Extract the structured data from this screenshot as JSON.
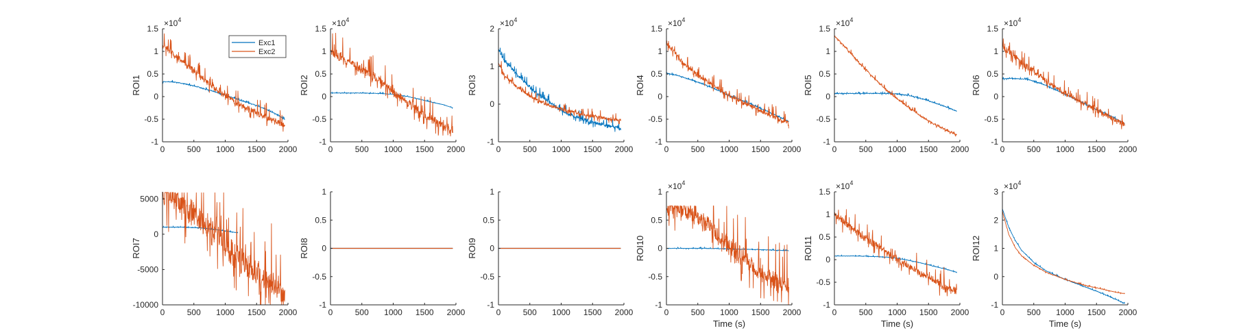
{
  "colors": {
    "Exc1": "#0072BD",
    "Exc2": "#D95319",
    "axis": "#262626"
  },
  "legend": {
    "location": "top-right of ROI1",
    "entries": [
      "Exc1",
      "Exc2"
    ]
  },
  "chart_data": [
    {
      "type": "line",
      "ylabel": "ROI1",
      "xlabel": "",
      "exponent": "4",
      "xlim": [
        0,
        2000
      ],
      "ylim": [
        -1,
        1.5
      ],
      "xticks": [
        "0",
        "500",
        "1000",
        "1500",
        "2000"
      ],
      "yticks": [
        "-1",
        "-0.5",
        "0",
        "0.5",
        "1",
        "1.5"
      ],
      "series": [
        {
          "name": "Exc1",
          "x": [
            0,
            200,
            400,
            600,
            800,
            1000,
            1200,
            1400,
            1600,
            1800,
            1950
          ],
          "y": [
            0.33,
            0.32,
            0.27,
            0.2,
            0.12,
            0.03,
            -0.06,
            -0.15,
            -0.25,
            -0.38,
            -0.5
          ],
          "noise": 0.02
        },
        {
          "name": "Exc2",
          "x": [
            0,
            200,
            400,
            600,
            800,
            1000,
            1200,
            1400,
            1600,
            1800,
            1950
          ],
          "y": [
            1.15,
            0.9,
            0.68,
            0.45,
            0.22,
            0.02,
            -0.15,
            -0.3,
            -0.42,
            -0.55,
            -0.65
          ],
          "noise": 0.15
        }
      ]
    },
    {
      "type": "line",
      "ylabel": "ROI2",
      "xlabel": "",
      "exponent": "4",
      "xlim": [
        0,
        2000
      ],
      "ylim": [
        -1,
        1.5
      ],
      "xticks": [
        "0",
        "500",
        "1000",
        "1500",
        "2000"
      ],
      "yticks": [
        "-1",
        "-0.5",
        "0",
        "0.5",
        "1",
        "1.5"
      ],
      "series": [
        {
          "name": "Exc1",
          "x": [
            0,
            400,
            800,
            1000,
            1200,
            1400,
            1600,
            1800,
            1950
          ],
          "y": [
            0.08,
            0.08,
            0.07,
            0.05,
            0.01,
            -0.05,
            -0.12,
            -0.18,
            -0.25
          ],
          "noise": 0.01
        },
        {
          "name": "Exc2",
          "x": [
            0,
            200,
            400,
            600,
            800,
            1000,
            1200,
            1400,
            1600,
            1800,
            1950
          ],
          "y": [
            1.0,
            0.85,
            0.7,
            0.52,
            0.32,
            0.1,
            -0.1,
            -0.3,
            -0.5,
            -0.65,
            -0.75
          ],
          "noise": 0.22
        }
      ]
    },
    {
      "type": "line",
      "ylabel": "ROI3",
      "xlabel": "",
      "exponent": "4",
      "xlim": [
        0,
        2000
      ],
      "ylim": [
        -1,
        2
      ],
      "xticks": [
        "0",
        "500",
        "1000",
        "1500",
        "2000"
      ],
      "yticks": [
        "-1",
        "0",
        "1",
        "2"
      ],
      "series": [
        {
          "name": "Exc1",
          "x": [
            0,
            100,
            300,
            500,
            700,
            900,
            1100,
            1300,
            1500,
            1700,
            1950
          ],
          "y": [
            1.45,
            1.15,
            0.78,
            0.45,
            0.18,
            -0.05,
            -0.25,
            -0.38,
            -0.48,
            -0.55,
            -0.65
          ],
          "noise": 0.1
        },
        {
          "name": "Exc2",
          "x": [
            0,
            100,
            300,
            500,
            700,
            900,
            1100,
            1300,
            1500,
            1700,
            1950
          ],
          "y": [
            1.1,
            0.75,
            0.45,
            0.22,
            0.05,
            -0.08,
            -0.18,
            -0.26,
            -0.32,
            -0.38,
            -0.42
          ],
          "noise": 0.1
        }
      ]
    },
    {
      "type": "line",
      "ylabel": "ROI4",
      "xlabel": "",
      "exponent": "4",
      "xlim": [
        0,
        2000
      ],
      "ylim": [
        -1,
        1.5
      ],
      "xticks": [
        "0",
        "500",
        "1000",
        "1500",
        "2000"
      ],
      "yticks": [
        "-1",
        "-0.5",
        "0",
        "0.5",
        "1",
        "1.5"
      ],
      "series": [
        {
          "name": "Exc1",
          "x": [
            0,
            200,
            400,
            600,
            800,
            1000,
            1200,
            1400,
            1600,
            1800,
            1950
          ],
          "y": [
            0.52,
            0.46,
            0.37,
            0.27,
            0.15,
            0.03,
            -0.08,
            -0.2,
            -0.32,
            -0.45,
            -0.55
          ],
          "noise": 0.02
        },
        {
          "name": "Exc2",
          "x": [
            0,
            200,
            400,
            600,
            800,
            1000,
            1200,
            1400,
            1600,
            1800,
            1950
          ],
          "y": [
            1.2,
            0.85,
            0.58,
            0.38,
            0.2,
            0.03,
            -0.12,
            -0.25,
            -0.38,
            -0.5,
            -0.6
          ],
          "noise": 0.12
        }
      ]
    },
    {
      "type": "line",
      "ylabel": "ROI5",
      "xlabel": "",
      "exponent": "4",
      "xlim": [
        0,
        2000
      ],
      "ylim": [
        -1,
        1.5
      ],
      "xticks": [
        "0",
        "500",
        "1000",
        "1500",
        "2000"
      ],
      "yticks": [
        "-1",
        "-0.5",
        "0",
        "0.5",
        "1",
        "1.5"
      ],
      "series": [
        {
          "name": "Exc1",
          "x": [
            0,
            400,
            800,
            1000,
            1200,
            1400,
            1600,
            1800,
            1950
          ],
          "y": [
            0.07,
            0.07,
            0.07,
            0.06,
            0.02,
            -0.05,
            -0.14,
            -0.24,
            -0.32
          ],
          "noise": 0.02
        },
        {
          "name": "Exc2",
          "x": [
            0,
            200,
            400,
            600,
            800,
            1000,
            1200,
            1400,
            1600,
            1800,
            1950
          ],
          "y": [
            1.35,
            1.05,
            0.75,
            0.45,
            0.18,
            -0.05,
            -0.25,
            -0.45,
            -0.62,
            -0.75,
            -0.85
          ],
          "noise": 0.04
        }
      ]
    },
    {
      "type": "line",
      "ylabel": "ROI6",
      "xlabel": "",
      "exponent": "4",
      "xlim": [
        0,
        2000
      ],
      "ylim": [
        -1,
        1.5
      ],
      "xticks": [
        "0",
        "500",
        "1000",
        "1500",
        "2000"
      ],
      "yticks": [
        "-1",
        "-0.5",
        "0",
        "0.5",
        "1",
        "1.5"
      ],
      "series": [
        {
          "name": "Exc1",
          "x": [
            0,
            200,
            400,
            600,
            800,
            1000,
            1200,
            1400,
            1600,
            1800,
            1950
          ],
          "y": [
            0.4,
            0.4,
            0.38,
            0.3,
            0.18,
            0.05,
            -0.08,
            -0.22,
            -0.35,
            -0.48,
            -0.6
          ],
          "noise": 0.02
        },
        {
          "name": "Exc2",
          "x": [
            0,
            200,
            400,
            600,
            800,
            1000,
            1200,
            1400,
            1600,
            1800,
            1950
          ],
          "y": [
            1.1,
            0.88,
            0.65,
            0.45,
            0.25,
            0.08,
            -0.08,
            -0.22,
            -0.38,
            -0.52,
            -0.62
          ],
          "noise": 0.15
        }
      ]
    },
    {
      "type": "line",
      "ylabel": "ROI7",
      "xlabel": "",
      "exponent": "",
      "xlim": [
        0,
        2000
      ],
      "ylim": [
        -10000,
        6000
      ],
      "xticks": [
        "0",
        "500",
        "1000",
        "1500",
        "2000"
      ],
      "yticks": [
        "-10000",
        "-5000",
        "0",
        "5000"
      ],
      "series": [
        {
          "name": "Exc1",
          "x": [
            0,
            300,
            600,
            900,
            1200
          ],
          "y": [
            1000,
            1000,
            900,
            600,
            200
          ],
          "noise": 50
        },
        {
          "name": "Exc2",
          "x": [
            0,
            200,
            400,
            600,
            800,
            1000,
            1200,
            1400,
            1600,
            1800,
            1950
          ],
          "y": [
            5900,
            5000,
            3500,
            1800,
            200,
            -1500,
            -3200,
            -4800,
            -6200,
            -7500,
            -8500
          ],
          "noise": 4000,
          "clip": 5900
        }
      ]
    },
    {
      "type": "line",
      "ylabel": "ROI8",
      "xlabel": "",
      "exponent": "",
      "xlim": [
        0,
        2000
      ],
      "ylim": [
        -1,
        1
      ],
      "xticks": [
        "0",
        "500",
        "1000",
        "1500",
        "2000"
      ],
      "yticks": [
        "-1",
        "-0.5",
        "0",
        "0.5",
        "1"
      ],
      "series": [
        {
          "name": "Exc1",
          "x": [
            0,
            1950
          ],
          "y": [
            0,
            0
          ],
          "noise": 0
        },
        {
          "name": "Exc2",
          "x": [
            0,
            1950
          ],
          "y": [
            0,
            0
          ],
          "noise": 0
        }
      ]
    },
    {
      "type": "line",
      "ylabel": "ROI9",
      "xlabel": "",
      "exponent": "",
      "xlim": [
        0,
        2000
      ],
      "ylim": [
        -1,
        1
      ],
      "xticks": [
        "0",
        "500",
        "1000",
        "1500",
        "2000"
      ],
      "yticks": [
        "-1",
        "-0.5",
        "0",
        "0.5",
        "1"
      ],
      "series": [
        {
          "name": "Exc1",
          "x": [
            0,
            1950
          ],
          "y": [
            0,
            0
          ],
          "noise": 0
        },
        {
          "name": "Exc2",
          "x": [
            0,
            1950
          ],
          "y": [
            0,
            0
          ],
          "noise": 0
        }
      ]
    },
    {
      "type": "line",
      "ylabel": "ROI10",
      "xlabel": "Time (s)",
      "exponent": "4",
      "xlim": [
        0,
        2000
      ],
      "ylim": [
        -1,
        1
      ],
      "xticks": [
        "0",
        "500",
        "1000",
        "1500",
        "2000"
      ],
      "yticks": [
        "-1",
        "-0.5",
        "0",
        "0.5",
        "1"
      ],
      "series": [
        {
          "name": "Exc1",
          "x": [
            0,
            600,
            1000,
            1400,
            1950
          ],
          "y": [
            0.0,
            0.0,
            -0.01,
            -0.02,
            -0.04
          ],
          "noise": 0.01
        },
        {
          "name": "Exc2",
          "x": [
            0,
            200,
            400,
            600,
            800,
            1000,
            1200,
            1400,
            1600,
            1800,
            1950
          ],
          "y": [
            0.75,
            0.72,
            0.62,
            0.45,
            0.25,
            0.05,
            -0.15,
            -0.35,
            -0.5,
            -0.62,
            -0.72
          ],
          "noise": 0.35,
          "clip": 0.75
        }
      ]
    },
    {
      "type": "line",
      "ylabel": "ROI11",
      "xlabel": "Time (s)",
      "exponent": "4",
      "xlim": [
        0,
        2000
      ],
      "ylim": [
        -1,
        1.5
      ],
      "xticks": [
        "0",
        "500",
        "1000",
        "1500",
        "2000"
      ],
      "yticks": [
        "-1",
        "-0.5",
        "0",
        "0.5",
        "1",
        "1.5"
      ],
      "series": [
        {
          "name": "Exc1",
          "x": [
            0,
            400,
            800,
            1000,
            1200,
            1400,
            1600,
            1800,
            1950
          ],
          "y": [
            0.08,
            0.08,
            0.06,
            0.03,
            -0.02,
            -0.08,
            -0.15,
            -0.22,
            -0.28
          ],
          "noise": 0.01
        },
        {
          "name": "Exc2",
          "x": [
            0,
            200,
            400,
            600,
            800,
            1000,
            1200,
            1400,
            1600,
            1800,
            1950
          ],
          "y": [
            1.0,
            0.78,
            0.58,
            0.38,
            0.18,
            0.0,
            -0.15,
            -0.32,
            -0.48,
            -0.62,
            -0.72
          ],
          "noise": 0.2
        }
      ]
    },
    {
      "type": "line",
      "ylabel": "ROI12",
      "xlabel": "Time (s)",
      "exponent": "4",
      "xlim": [
        0,
        2000
      ],
      "ylim": [
        -1,
        3
      ],
      "xticks": [
        "0",
        "500",
        "1000",
        "1500",
        "2000"
      ],
      "yticks": [
        "-1",
        "0",
        "1",
        "2",
        "3"
      ],
      "series": [
        {
          "name": "Exc1",
          "x": [
            0,
            100,
            200,
            300,
            500,
            700,
            1000,
            1300,
            1600,
            1800,
            1950
          ],
          "y": [
            2.4,
            1.75,
            1.3,
            0.95,
            0.5,
            0.2,
            -0.1,
            -0.35,
            -0.6,
            -0.8,
            -0.95
          ],
          "noise": 0.02
        },
        {
          "name": "Exc2",
          "x": [
            0,
            100,
            200,
            300,
            500,
            700,
            1000,
            1300,
            1600,
            1800,
            1950
          ],
          "y": [
            2.3,
            1.5,
            1.05,
            0.75,
            0.4,
            0.15,
            -0.1,
            -0.3,
            -0.45,
            -0.55,
            -0.6
          ],
          "noise": 0.02
        }
      ]
    }
  ]
}
